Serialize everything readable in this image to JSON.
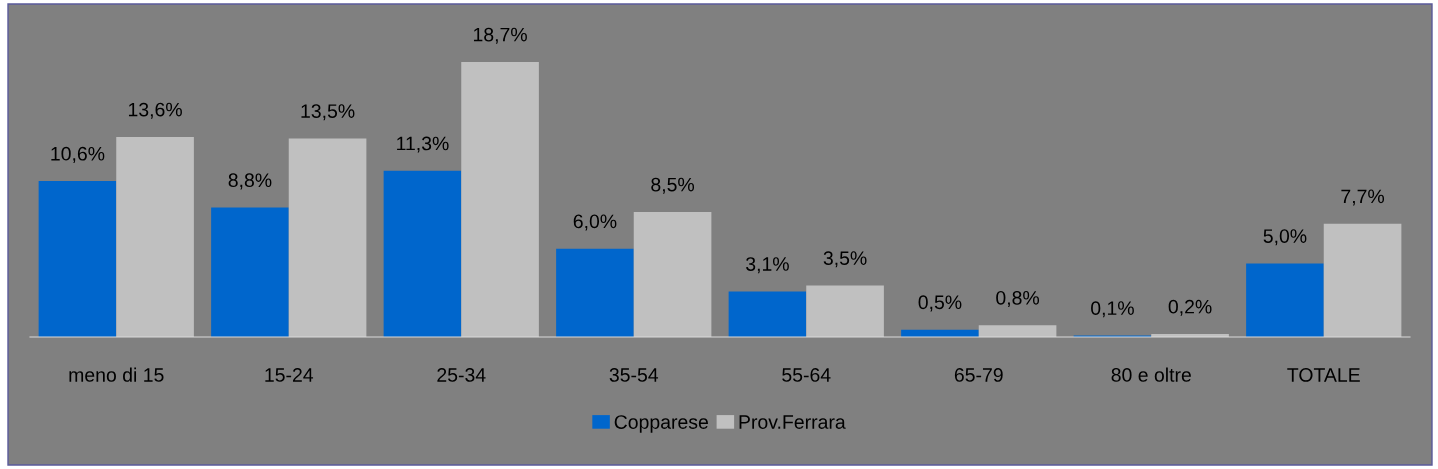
{
  "chart_data": {
    "type": "bar",
    "categories": [
      "meno di 15",
      "15-24",
      "25-34",
      "35-54",
      "55-64",
      "65-79",
      "80 e oltre",
      "TOTALE"
    ],
    "series": [
      {
        "name": "Copparese",
        "color": "#0066cc",
        "values": [
          10.6,
          8.8,
          11.3,
          6.0,
          3.1,
          0.5,
          0.1,
          5.0
        ],
        "value_labels": [
          "10,6%",
          "8,8%",
          "11,3%",
          "6,0%",
          "3,1%",
          "0,5%",
          "0,1%",
          "5,0%"
        ]
      },
      {
        "name": "Prov.Ferrara",
        "color": "#c0c0c0",
        "values": [
          13.6,
          13.5,
          18.7,
          8.5,
          3.5,
          0.8,
          0.2,
          7.7
        ],
        "value_labels": [
          "13,6%",
          "13,5%",
          "18,7%",
          "8,5%",
          "3,5%",
          "0,8%",
          "0,2%",
          "7,7%"
        ]
      }
    ],
    "legend": "bottom",
    "grid": false
  }
}
